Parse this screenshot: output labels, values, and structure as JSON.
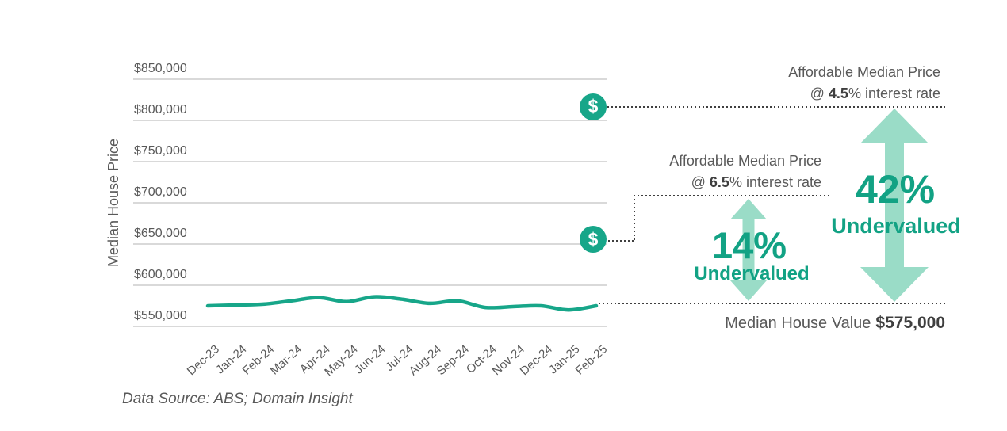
{
  "chart_data": {
    "type": "line",
    "title": "",
    "ylabel": "Median House Price",
    "x": [
      "Dec-23",
      "Jan-24",
      "Feb-24",
      "Mar-24",
      "Apr-24",
      "May-24",
      "Jun-24",
      "Jul-24",
      "Aug-24",
      "Sep-24",
      "Oct-24",
      "Nov-24",
      "Dec-24",
      "Jan-25",
      "Feb-25"
    ],
    "series": [
      {
        "name": "Median house price",
        "values": [
          575000,
          576000,
          577000,
          581000,
          585000,
          580000,
          586000,
          583000,
          578000,
          581000,
          573000,
          574000,
          575000,
          570000,
          575000
        ]
      }
    ],
    "ylim": [
      550000,
      850000
    ],
    "yticks": [
      550000,
      600000,
      650000,
      700000,
      750000,
      800000,
      850000
    ],
    "ytick_labels": [
      "$550,000",
      "$600,000",
      "$650,000",
      "$700,000",
      "$750,000",
      "$800,000",
      "$850,000"
    ],
    "grid": "horizontal",
    "legend": "none",
    "markers": [
      {
        "name": "affordable-median-price-4.5",
        "value": 816500
      },
      {
        "name": "affordable-median-price-6.5",
        "value": 655500
      }
    ]
  },
  "annotations": {
    "affordable_45": {
      "line1": "Affordable Median Price",
      "at": "@ ",
      "rate": "4.5",
      "rest": "% interest rate"
    },
    "affordable_65": {
      "line1": "Affordable Median Price",
      "at": "@ ",
      "rate": "6.5",
      "rest": "% interest rate"
    },
    "undervalued_42": {
      "pct": "42%",
      "label": "Undervalued"
    },
    "undervalued_14": {
      "pct": "14%",
      "label": "Undervalued"
    },
    "median_house": {
      "label": "Median House Value",
      "amount": "$575,000"
    }
  },
  "footer": {
    "source": "Data Source: ABS; Domain Insight"
  },
  "icons": {
    "dollar": "$"
  },
  "colors": {
    "teal": "#17a689",
    "teal_text": "#12a284",
    "teal_light": "#9adcc7",
    "gridline": "#d9d9d9",
    "text_gray": "#595959",
    "text_dark": "#3f3f3f"
  }
}
